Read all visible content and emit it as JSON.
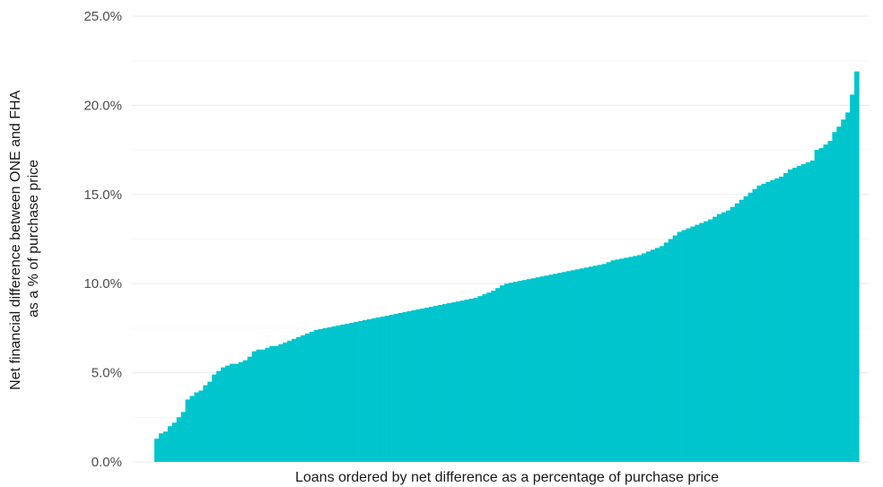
{
  "chart_data": {
    "type": "bar",
    "title": "",
    "xlabel": "Loans ordered by net difference as a percentage of purchase price",
    "ylabel": "Net financial difference between ONE and FHA as a % of purchase price",
    "ylabel_lines": [
      "Net financial difference between ONE and FHA",
      "as a % of purchase price"
    ],
    "ylim": [
      0,
      25
    ],
    "yticks": [
      0,
      5,
      10,
      15,
      20,
      25
    ],
    "ytick_labels": [
      "0.0%",
      "5.0%",
      "10.0%",
      "15.0%",
      "20.0%",
      "25.0%"
    ],
    "grid": true,
    "x_ticks_shown": false,
    "bar_color": "#00C5CD",
    "series": [
      {
        "values": [
          1.3,
          1.6,
          1.7,
          2.0,
          2.2,
          2.5,
          2.8,
          3.5,
          3.7,
          3.9,
          4.0,
          4.3,
          4.5,
          4.9,
          5.1,
          5.3,
          5.4,
          5.5,
          5.5,
          5.6,
          5.7,
          5.9,
          6.2,
          6.3,
          6.3,
          6.4,
          6.5,
          6.5,
          6.6,
          6.7,
          6.8,
          6.9,
          7.0,
          7.1,
          7.2,
          7.3,
          7.4,
          7.45,
          7.5,
          7.55,
          7.6,
          7.65,
          7.7,
          7.75,
          7.8,
          7.85,
          7.9,
          7.95,
          8.0,
          8.05,
          8.1,
          8.15,
          8.2,
          8.25,
          8.3,
          8.35,
          8.4,
          8.45,
          8.5,
          8.55,
          8.6,
          8.65,
          8.7,
          8.75,
          8.8,
          8.85,
          8.9,
          8.95,
          9.0,
          9.05,
          9.1,
          9.15,
          9.2,
          9.3,
          9.4,
          9.5,
          9.6,
          9.75,
          9.9,
          10.0,
          10.05,
          10.1,
          10.15,
          10.2,
          10.25,
          10.3,
          10.35,
          10.4,
          10.45,
          10.5,
          10.55,
          10.6,
          10.65,
          10.7,
          10.75,
          10.8,
          10.85,
          10.9,
          10.95,
          11.0,
          11.05,
          11.1,
          11.2,
          11.3,
          11.35,
          11.4,
          11.45,
          11.5,
          11.55,
          11.6,
          11.7,
          11.8,
          11.9,
          12.0,
          12.1,
          12.3,
          12.5,
          12.7,
          12.9,
          13.0,
          13.1,
          13.2,
          13.3,
          13.4,
          13.5,
          13.6,
          13.75,
          13.9,
          14.0,
          14.1,
          14.3,
          14.5,
          14.7,
          14.9,
          15.1,
          15.3,
          15.5,
          15.6,
          15.7,
          15.8,
          15.9,
          16.0,
          16.2,
          16.4,
          16.5,
          16.6,
          16.7,
          16.8,
          16.9,
          17.5,
          17.6,
          17.8,
          18.0,
          18.5,
          18.8,
          19.2,
          19.6,
          20.6,
          21.9
        ]
      }
    ]
  }
}
